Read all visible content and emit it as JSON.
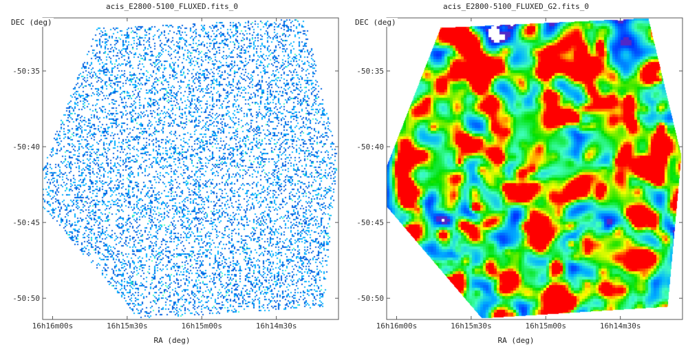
{
  "chart_data": [
    {
      "type": "heatmap",
      "title": "acis_E2800-5100_FLUXED.fits_0",
      "xlabel": "RA (deg)",
      "ylabel": "DEC (deg)",
      "x_ticks": [
        "16h16m00s",
        "16h15m30s",
        "16h15m00s",
        "16h14m30s"
      ],
      "y_ticks": [
        "-50:35",
        "-50:40",
        "-50:45",
        "-50:50"
      ],
      "x_tick_values_sec": [
        58560,
        58530,
        58500,
        58470
      ],
      "y_tick_values_arcmin": [
        -3035,
        -3040,
        -3045,
        -3050
      ],
      "xlim_sec": [
        58564,
        58445
      ],
      "ylim_arcmin": [
        -3051.4,
        -3031.5
      ],
      "grid": false,
      "colormap": [
        "#ffffff",
        "#0060e0",
        "#00b0ff",
        "#40ffc0",
        "#00e000",
        "#ffff00",
        "#ff0000"
      ],
      "rendering": "sparse"
    },
    {
      "type": "heatmap",
      "title": "acis_E2800-5100_FLUXED_G2.fits_0",
      "xlabel": "RA (deg)",
      "ylabel": "DEC (deg)",
      "x_ticks": [
        "16h16m00s",
        "16h15m30s",
        "16h15m00s",
        "16h14m30s"
      ],
      "y_ticks": [
        "-50:35",
        "-50:40",
        "-50:45",
        "-50:50"
      ],
      "x_tick_values_sec": [
        58560,
        58530,
        58500,
        58470
      ],
      "y_tick_values_arcmin": [
        -3035,
        -3040,
        -3045,
        -3050
      ],
      "xlim_sec": [
        58564,
        58445
      ],
      "ylim_arcmin": [
        -3051.4,
        -3031.5
      ],
      "grid": false,
      "colormap": [
        "#ffffff",
        "#0030ff",
        "#00b0ff",
        "#40ffc0",
        "#00e000",
        "#ffff00",
        "#ff0000"
      ],
      "rendering": "smoothed"
    }
  ]
}
